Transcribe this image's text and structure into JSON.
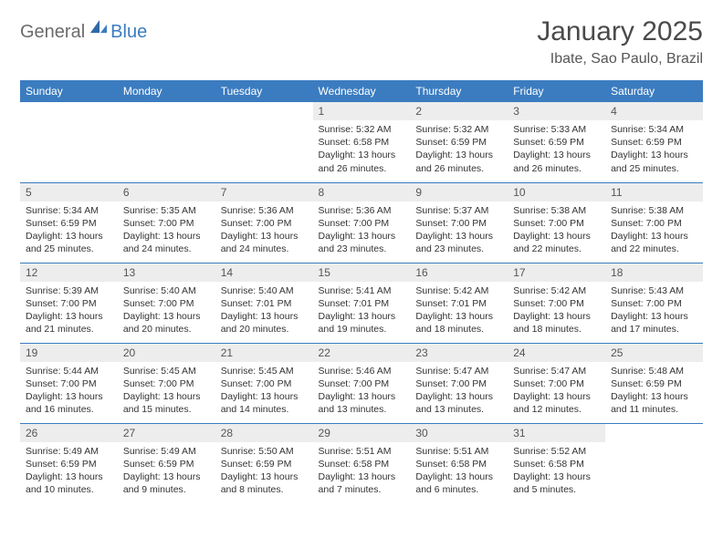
{
  "logo": {
    "part1": "General",
    "part2": "Blue"
  },
  "title": "January 2025",
  "location": "Ibate, Sao Paulo, Brazil",
  "colors": {
    "header_bg": "#3b7cc0",
    "header_text": "#ffffff",
    "daynum_bg": "#ededed",
    "border": "#3b7cc0",
    "logo_gray": "#6b6b6b",
    "logo_blue": "#3b7cc0"
  },
  "daynames": [
    "Sunday",
    "Monday",
    "Tuesday",
    "Wednesday",
    "Thursday",
    "Friday",
    "Saturday"
  ],
  "weeks": [
    [
      {
        "n": "",
        "sr": "",
        "ss": "",
        "dl": ""
      },
      {
        "n": "",
        "sr": "",
        "ss": "",
        "dl": ""
      },
      {
        "n": "",
        "sr": "",
        "ss": "",
        "dl": ""
      },
      {
        "n": "1",
        "sr": "Sunrise: 5:32 AM",
        "ss": "Sunset: 6:58 PM",
        "dl": "Daylight: 13 hours and 26 minutes."
      },
      {
        "n": "2",
        "sr": "Sunrise: 5:32 AM",
        "ss": "Sunset: 6:59 PM",
        "dl": "Daylight: 13 hours and 26 minutes."
      },
      {
        "n": "3",
        "sr": "Sunrise: 5:33 AM",
        "ss": "Sunset: 6:59 PM",
        "dl": "Daylight: 13 hours and 26 minutes."
      },
      {
        "n": "4",
        "sr": "Sunrise: 5:34 AM",
        "ss": "Sunset: 6:59 PM",
        "dl": "Daylight: 13 hours and 25 minutes."
      }
    ],
    [
      {
        "n": "5",
        "sr": "Sunrise: 5:34 AM",
        "ss": "Sunset: 6:59 PM",
        "dl": "Daylight: 13 hours and 25 minutes."
      },
      {
        "n": "6",
        "sr": "Sunrise: 5:35 AM",
        "ss": "Sunset: 7:00 PM",
        "dl": "Daylight: 13 hours and 24 minutes."
      },
      {
        "n": "7",
        "sr": "Sunrise: 5:36 AM",
        "ss": "Sunset: 7:00 PM",
        "dl": "Daylight: 13 hours and 24 minutes."
      },
      {
        "n": "8",
        "sr": "Sunrise: 5:36 AM",
        "ss": "Sunset: 7:00 PM",
        "dl": "Daylight: 13 hours and 23 minutes."
      },
      {
        "n": "9",
        "sr": "Sunrise: 5:37 AM",
        "ss": "Sunset: 7:00 PM",
        "dl": "Daylight: 13 hours and 23 minutes."
      },
      {
        "n": "10",
        "sr": "Sunrise: 5:38 AM",
        "ss": "Sunset: 7:00 PM",
        "dl": "Daylight: 13 hours and 22 minutes."
      },
      {
        "n": "11",
        "sr": "Sunrise: 5:38 AM",
        "ss": "Sunset: 7:00 PM",
        "dl": "Daylight: 13 hours and 22 minutes."
      }
    ],
    [
      {
        "n": "12",
        "sr": "Sunrise: 5:39 AM",
        "ss": "Sunset: 7:00 PM",
        "dl": "Daylight: 13 hours and 21 minutes."
      },
      {
        "n": "13",
        "sr": "Sunrise: 5:40 AM",
        "ss": "Sunset: 7:00 PM",
        "dl": "Daylight: 13 hours and 20 minutes."
      },
      {
        "n": "14",
        "sr": "Sunrise: 5:40 AM",
        "ss": "Sunset: 7:01 PM",
        "dl": "Daylight: 13 hours and 20 minutes."
      },
      {
        "n": "15",
        "sr": "Sunrise: 5:41 AM",
        "ss": "Sunset: 7:01 PM",
        "dl": "Daylight: 13 hours and 19 minutes."
      },
      {
        "n": "16",
        "sr": "Sunrise: 5:42 AM",
        "ss": "Sunset: 7:01 PM",
        "dl": "Daylight: 13 hours and 18 minutes."
      },
      {
        "n": "17",
        "sr": "Sunrise: 5:42 AM",
        "ss": "Sunset: 7:00 PM",
        "dl": "Daylight: 13 hours and 18 minutes."
      },
      {
        "n": "18",
        "sr": "Sunrise: 5:43 AM",
        "ss": "Sunset: 7:00 PM",
        "dl": "Daylight: 13 hours and 17 minutes."
      }
    ],
    [
      {
        "n": "19",
        "sr": "Sunrise: 5:44 AM",
        "ss": "Sunset: 7:00 PM",
        "dl": "Daylight: 13 hours and 16 minutes."
      },
      {
        "n": "20",
        "sr": "Sunrise: 5:45 AM",
        "ss": "Sunset: 7:00 PM",
        "dl": "Daylight: 13 hours and 15 minutes."
      },
      {
        "n": "21",
        "sr": "Sunrise: 5:45 AM",
        "ss": "Sunset: 7:00 PM",
        "dl": "Daylight: 13 hours and 14 minutes."
      },
      {
        "n": "22",
        "sr": "Sunrise: 5:46 AM",
        "ss": "Sunset: 7:00 PM",
        "dl": "Daylight: 13 hours and 13 minutes."
      },
      {
        "n": "23",
        "sr": "Sunrise: 5:47 AM",
        "ss": "Sunset: 7:00 PM",
        "dl": "Daylight: 13 hours and 13 minutes."
      },
      {
        "n": "24",
        "sr": "Sunrise: 5:47 AM",
        "ss": "Sunset: 7:00 PM",
        "dl": "Daylight: 13 hours and 12 minutes."
      },
      {
        "n": "25",
        "sr": "Sunrise: 5:48 AM",
        "ss": "Sunset: 6:59 PM",
        "dl": "Daylight: 13 hours and 11 minutes."
      }
    ],
    [
      {
        "n": "26",
        "sr": "Sunrise: 5:49 AM",
        "ss": "Sunset: 6:59 PM",
        "dl": "Daylight: 13 hours and 10 minutes."
      },
      {
        "n": "27",
        "sr": "Sunrise: 5:49 AM",
        "ss": "Sunset: 6:59 PM",
        "dl": "Daylight: 13 hours and 9 minutes."
      },
      {
        "n": "28",
        "sr": "Sunrise: 5:50 AM",
        "ss": "Sunset: 6:59 PM",
        "dl": "Daylight: 13 hours and 8 minutes."
      },
      {
        "n": "29",
        "sr": "Sunrise: 5:51 AM",
        "ss": "Sunset: 6:58 PM",
        "dl": "Daylight: 13 hours and 7 minutes."
      },
      {
        "n": "30",
        "sr": "Sunrise: 5:51 AM",
        "ss": "Sunset: 6:58 PM",
        "dl": "Daylight: 13 hours and 6 minutes."
      },
      {
        "n": "31",
        "sr": "Sunrise: 5:52 AM",
        "ss": "Sunset: 6:58 PM",
        "dl": "Daylight: 13 hours and 5 minutes."
      },
      {
        "n": "",
        "sr": "",
        "ss": "",
        "dl": ""
      }
    ]
  ]
}
